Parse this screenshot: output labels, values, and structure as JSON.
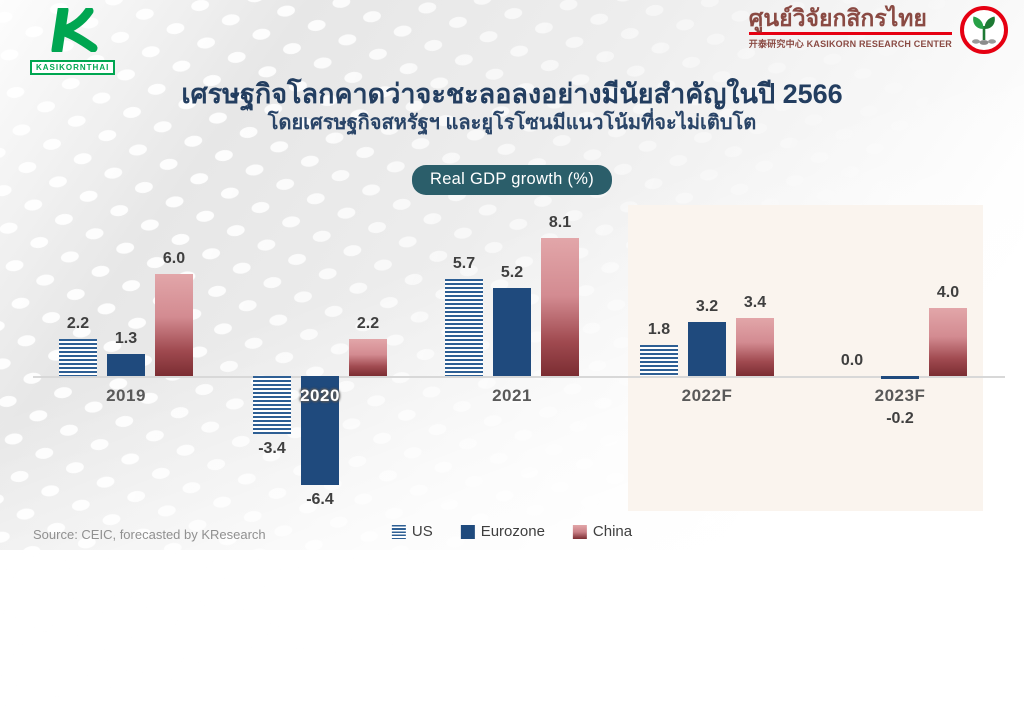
{
  "header": {
    "kbank": {
      "label": "KASIKORNTHAI",
      "green": "#00a651"
    },
    "krc": {
      "thai": "ศูนย์วิจัยกสิกรไทย",
      "sub": "开泰研究中心 KASIKORN RESEARCH CENTER",
      "red": "#e60012",
      "maroon": "#8a4a43"
    }
  },
  "title": {
    "main": "เศรษฐกิจโลกคาดว่าจะชะลอลงอย่างมีนัยสำคัญในปี 2566",
    "sub": "โดยเศรษฐกิจสหรัฐฯ และยูโรโซนมีแนวโน้มที่จะไม่เติบโต"
  },
  "badge": {
    "label": "Real GDP growth (%)",
    "color": "#2b5e6a"
  },
  "footer": {
    "source": "Source: CEIC, forecasted by KResearch"
  },
  "chart_data": {
    "type": "bar",
    "title": "Real GDP growth (%)",
    "categories": [
      "2019",
      "2020",
      "2021",
      "2022F",
      "2023F"
    ],
    "series": [
      {
        "name": "US",
        "style": "striped",
        "color": "#2e5f94",
        "values": [
          2.2,
          -3.4,
          5.7,
          1.8,
          0.0
        ]
      },
      {
        "name": "Eurozone",
        "style": "solid",
        "color": "#1f4a7d",
        "values": [
          1.3,
          -6.4,
          5.2,
          3.2,
          -0.2
        ]
      },
      {
        "name": "China",
        "style": "gradient",
        "color": "#7b2d32",
        "color_top": "#e2a6a9",
        "values": [
          6.0,
          2.2,
          8.1,
          3.4,
          4.0
        ]
      }
    ],
    "ylim": [
      -7,
      9
    ],
    "grid": false,
    "legend_position": "bottom",
    "highlight_categories": [
      "2022F",
      "2023F"
    ],
    "value_labels": true
  }
}
